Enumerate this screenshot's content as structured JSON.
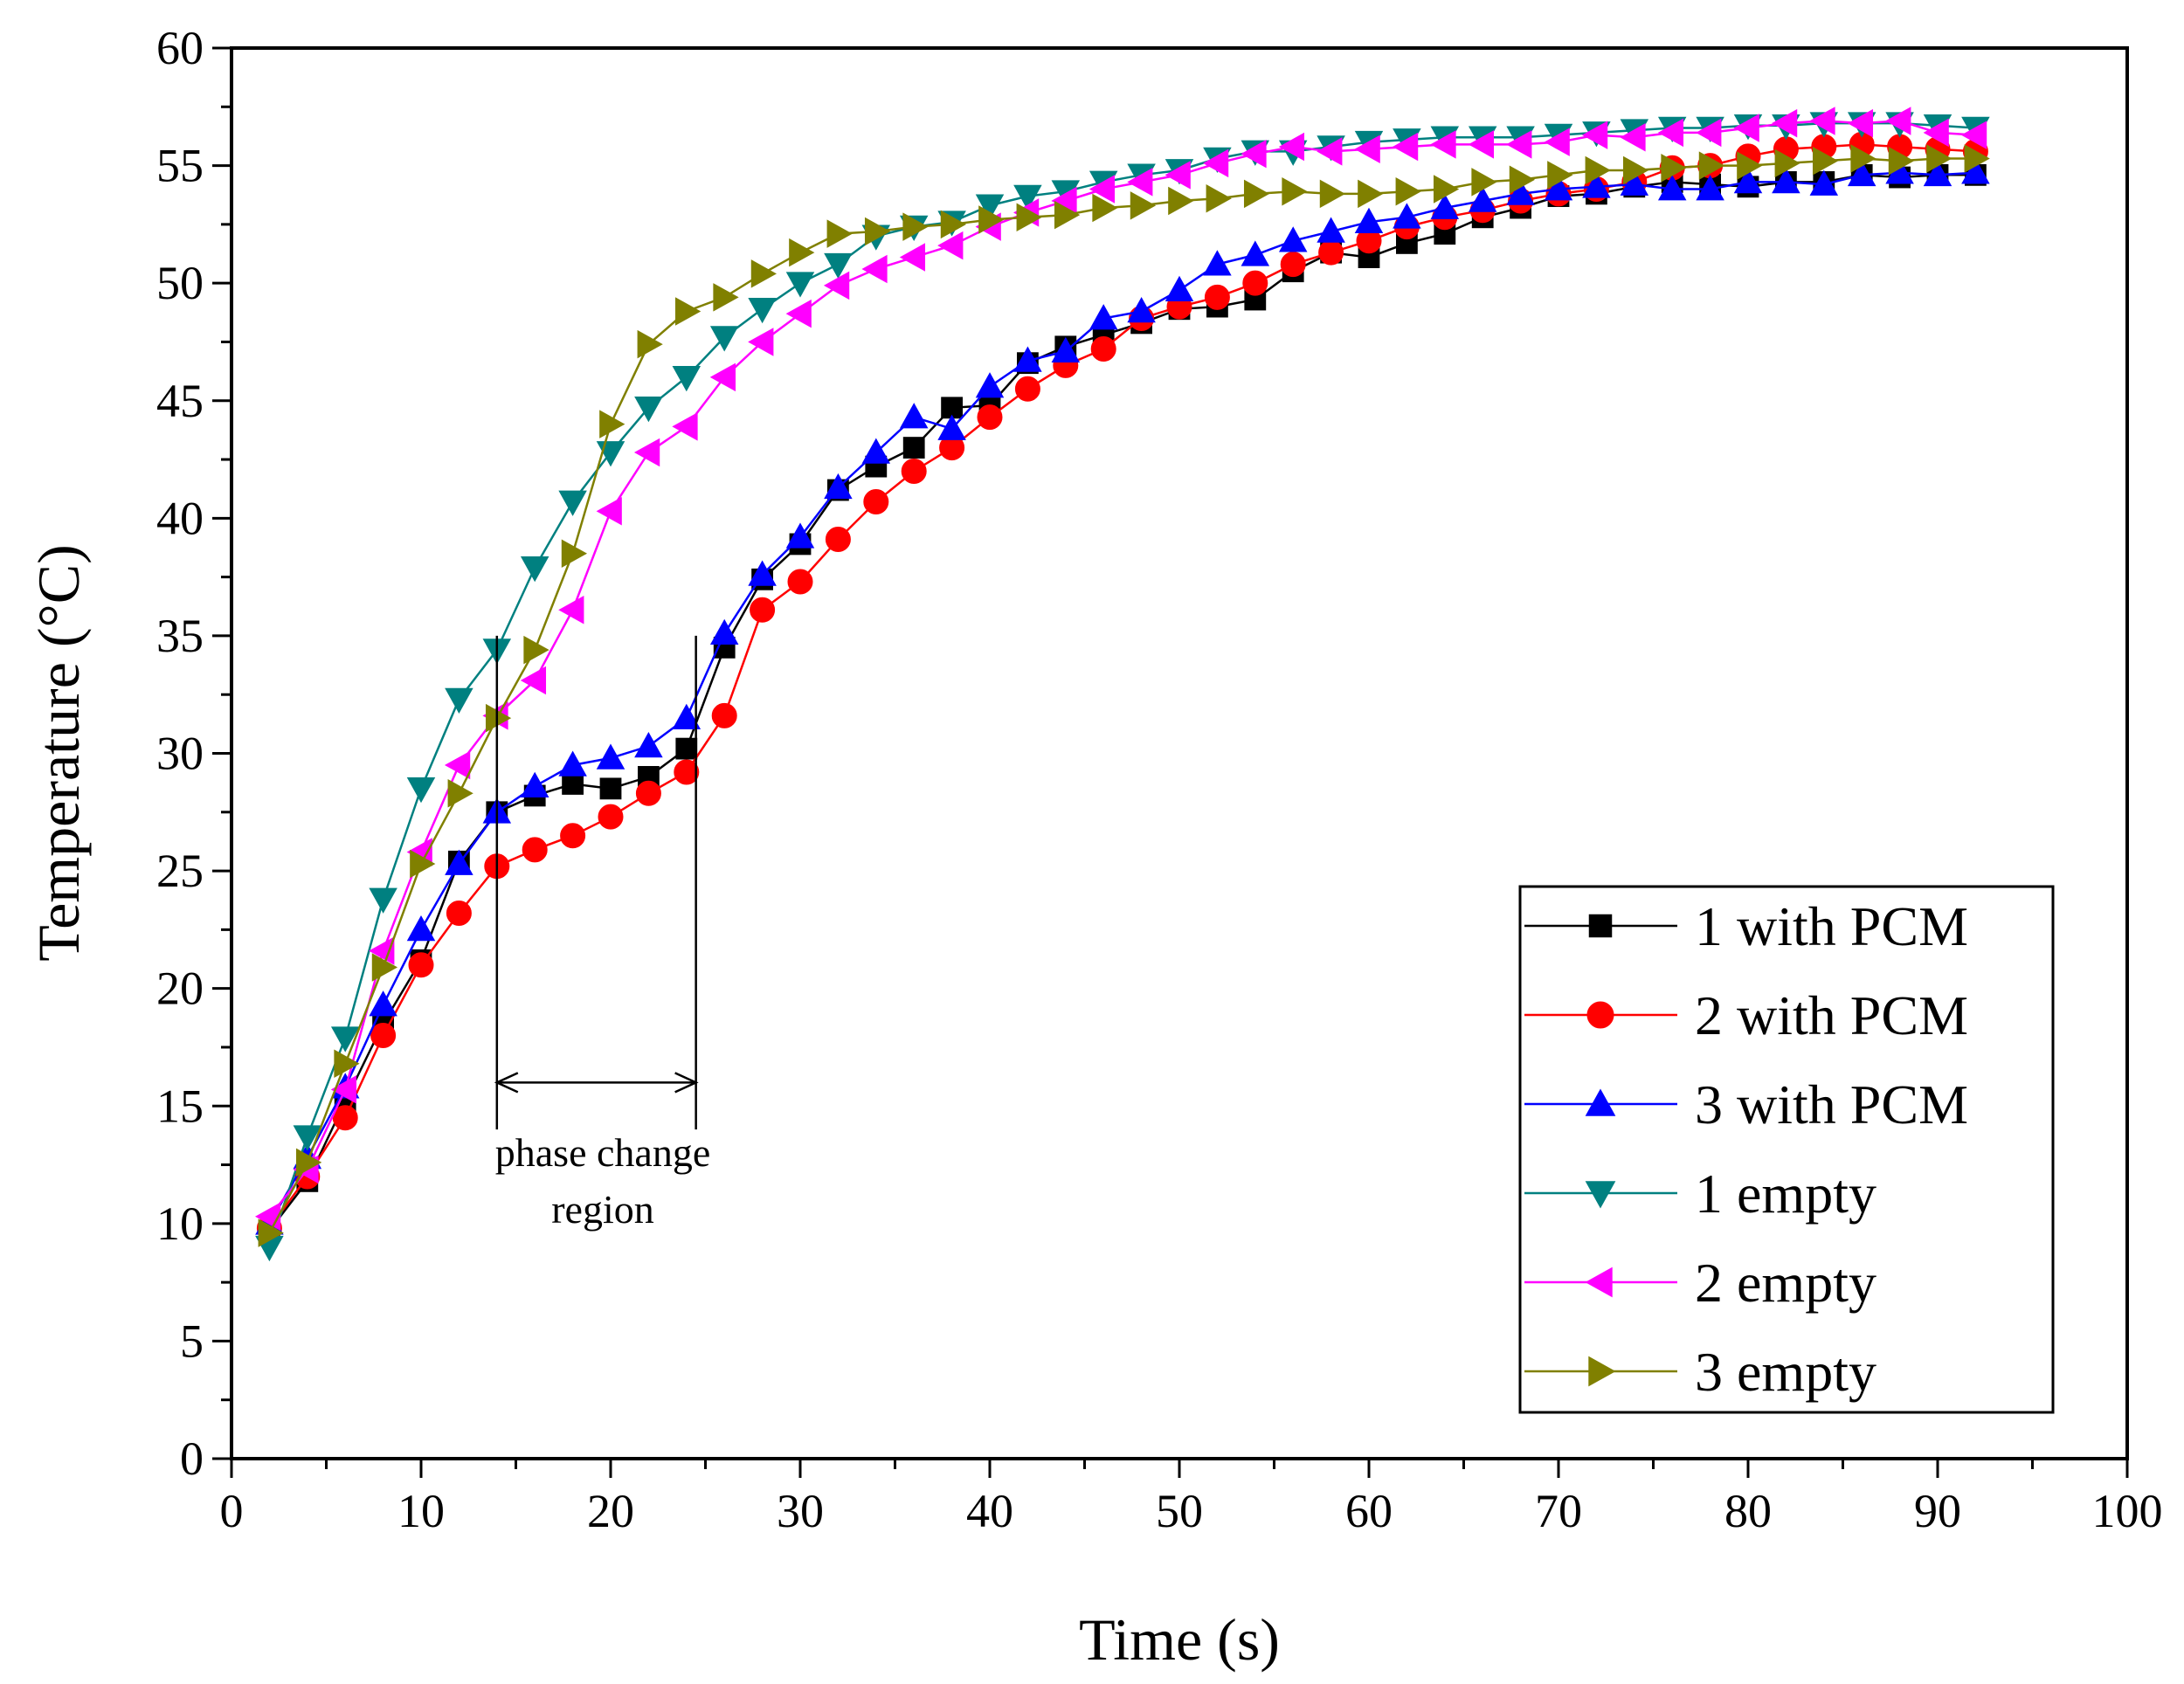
{
  "chart_data": {
    "type": "line",
    "title": "",
    "xlabel": "Time (s)",
    "ylabel": "Temperature (°C)",
    "xlim": [
      0,
      100
    ],
    "ylim": [
      0,
      60
    ],
    "xticks": [
      "0",
      "10",
      "20",
      "30",
      "40",
      "50",
      "60",
      "70",
      "80",
      "90",
      "100"
    ],
    "yticks": [
      "0",
      "5",
      "10",
      "15",
      "20",
      "25",
      "30",
      "35",
      "40",
      "45",
      "50",
      "55",
      "60"
    ],
    "grid": false,
    "legend_position": "bottom-right",
    "annotation": {
      "line1": "phase change",
      "line2": "region",
      "x_start": 14,
      "x_end": 24.5
    },
    "x": [
      2,
      4,
      6,
      8,
      10,
      12,
      14,
      16,
      18,
      20,
      22,
      24,
      26,
      28,
      30,
      32,
      34,
      36,
      38,
      40,
      42,
      44,
      46,
      48,
      50,
      52,
      54,
      56,
      58,
      60,
      62,
      64,
      66,
      68,
      70,
      72,
      74,
      76,
      78,
      80,
      82,
      84,
      86,
      88,
      90,
      92
    ],
    "series": [
      {
        "name": "1 with PCM",
        "marker": "square",
        "color": "#000000",
        "values": [
          9.7,
          11.8,
          15.2,
          18.5,
          21.2,
          25.4,
          27.5,
          28.2,
          28.7,
          28.5,
          29.0,
          30.2,
          34.5,
          37.4,
          38.9,
          41.2,
          42.2,
          43.0,
          44.7,
          44.8,
          46.6,
          47.3,
          47.8,
          48.3,
          48.9,
          49.0,
          49.3,
          50.5,
          51.3,
          51.1,
          51.7,
          52.1,
          52.8,
          53.2,
          53.7,
          53.8,
          54.1,
          54.3,
          54.2,
          54.1,
          54.3,
          54.3,
          54.6,
          54.5,
          54.6,
          54.6
        ]
      },
      {
        "name": "2 with PCM",
        "marker": "circle",
        "color": "#ff0000",
        "values": [
          9.8,
          12.0,
          14.5,
          18.0,
          21.0,
          23.2,
          25.2,
          25.9,
          26.5,
          27.3,
          28.3,
          29.2,
          31.6,
          36.1,
          37.3,
          39.1,
          40.7,
          42.0,
          43.0,
          44.3,
          45.5,
          46.5,
          47.2,
          48.5,
          49.0,
          49.4,
          50.0,
          50.8,
          51.3,
          51.8,
          52.4,
          52.8,
          53.1,
          53.5,
          53.8,
          54.0,
          54.3,
          54.9,
          55.0,
          55.4,
          55.7,
          55.8,
          55.9,
          55.8,
          55.7,
          55.6
        ]
      },
      {
        "name": "3 with PCM",
        "marker": "triangle-up",
        "color": "#0000ff",
        "values": [
          10.0,
          12.8,
          15.8,
          19.3,
          22.5,
          25.3,
          27.5,
          28.6,
          29.5,
          29.8,
          30.3,
          31.5,
          35.1,
          37.6,
          39.2,
          41.3,
          42.8,
          44.3,
          43.8,
          45.6,
          46.7,
          47.1,
          48.5,
          48.8,
          49.7,
          50.8,
          51.2,
          51.8,
          52.2,
          52.6,
          52.8,
          53.2,
          53.5,
          53.8,
          54.0,
          54.1,
          54.2,
          54.0,
          54.0,
          54.3,
          54.3,
          54.2,
          54.6,
          54.7,
          54.6,
          54.7
        ]
      },
      {
        "name": "1 empty",
        "marker": "triangle-down",
        "color": "#008080",
        "values": [
          9.0,
          13.7,
          17.9,
          23.8,
          28.5,
          32.3,
          34.4,
          37.9,
          40.7,
          42.8,
          44.7,
          46.0,
          47.7,
          48.9,
          50.0,
          50.8,
          52.0,
          52.4,
          52.6,
          53.3,
          53.7,
          53.9,
          54.3,
          54.6,
          54.8,
          55.3,
          55.6,
          55.6,
          55.8,
          56.0,
          56.1,
          56.2,
          56.2,
          56.2,
          56.3,
          56.4,
          56.5,
          56.6,
          56.6,
          56.7,
          56.7,
          56.8,
          56.8,
          56.8,
          56.7,
          56.6
        ]
      },
      {
        "name": "2 empty",
        "marker": "triangle-left",
        "color": "#ff00ff",
        "values": [
          10.3,
          12.3,
          15.7,
          21.6,
          25.8,
          29.5,
          31.6,
          33.1,
          36.1,
          40.3,
          42.8,
          43.9,
          46.0,
          47.5,
          48.7,
          49.9,
          50.6,
          51.1,
          51.6,
          52.4,
          53.0,
          53.5,
          54.0,
          54.3,
          54.6,
          55.1,
          55.5,
          55.8,
          55.6,
          55.7,
          55.8,
          55.9,
          55.9,
          55.9,
          56.0,
          56.3,
          56.2,
          56.4,
          56.4,
          56.6,
          56.8,
          56.9,
          56.8,
          56.9,
          56.4,
          56.3
        ]
      },
      {
        "name": "3 empty",
        "marker": "triangle-right",
        "color": "#808000",
        "values": [
          9.6,
          12.6,
          16.8,
          20.9,
          25.3,
          28.3,
          31.5,
          34.4,
          38.5,
          44.0,
          47.4,
          48.8,
          49.4,
          50.4,
          51.3,
          52.1,
          52.2,
          52.4,
          52.5,
          52.7,
          52.8,
          52.9,
          53.2,
          53.3,
          53.5,
          53.6,
          53.8,
          53.9,
          53.8,
          53.8,
          53.9,
          54.0,
          54.3,
          54.4,
          54.6,
          54.8,
          54.8,
          54.9,
          55.0,
          55.0,
          55.1,
          55.2,
          55.3,
          55.2,
          55.3,
          55.3
        ]
      }
    ]
  }
}
